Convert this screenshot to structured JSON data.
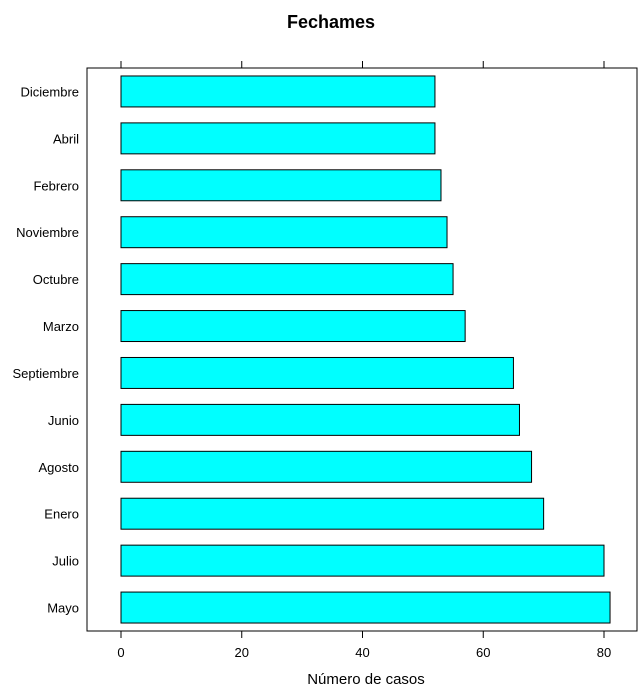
{
  "chart_data": {
    "type": "bar",
    "orientation": "horizontal",
    "title": "Fechames",
    "xlabel": "Número de casos",
    "ylabel": "",
    "xlim": [
      -6,
      85
    ],
    "xticks": [
      0,
      20,
      40,
      60,
      80
    ],
    "grid": false,
    "legend": "none",
    "categories": [
      "Diciembre",
      "Abril",
      "Febrero",
      "Noviembre",
      "Octubre",
      "Marzo",
      "Septiembre",
      "Junio",
      "Agosto",
      "Enero",
      "Julio",
      "Mayo"
    ],
    "values": [
      52,
      52,
      53,
      54,
      55,
      57,
      65,
      66,
      68,
      70,
      80,
      81
    ],
    "colors": {
      "bar_fill": "#00ffff",
      "bar_stroke": "#000000",
      "axis": "#000000",
      "text": "#000000"
    }
  }
}
